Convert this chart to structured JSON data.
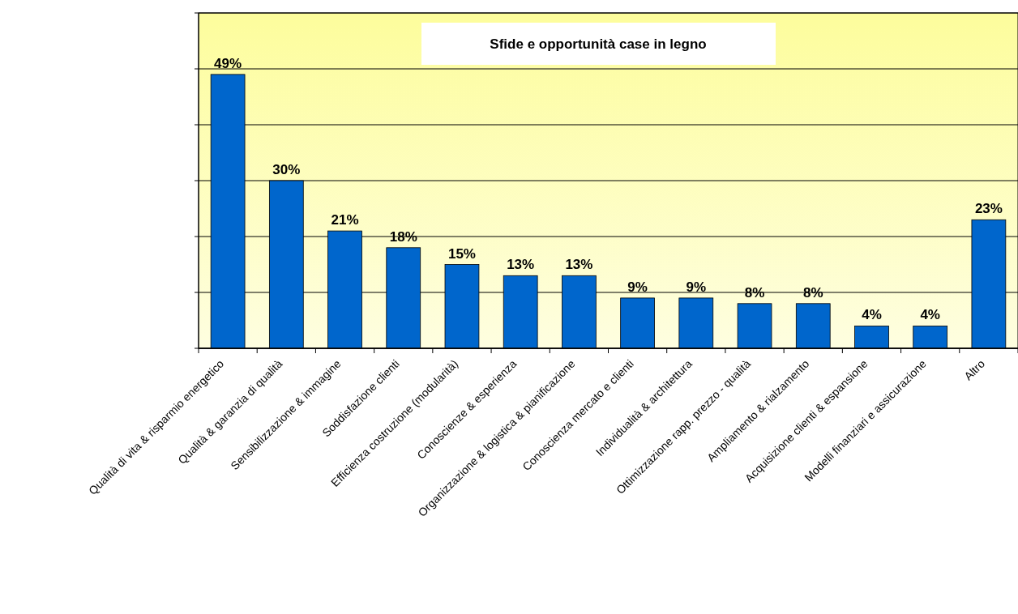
{
  "chart_data": {
    "type": "bar",
    "title": "Sfide e opportunità case in legno",
    "categories": [
      "Qualità di vita & risparmio energetico",
      "Qualità & garanzia di qualità",
      "Sensibilizzazione & immagine",
      "Soddisfazione clienti",
      "Efficienza costruzione (modularità)",
      "Conoscienze & esperienza",
      "Organizzazione & logistica & pianificazione",
      "Conoscienza mercato e clienti",
      "Individualità & architettura",
      "Ottimizzazione rapp. prezzo - qualità",
      "Ampliamento & rialzamento",
      "Acquisizione clienti & espansione",
      "Modelli finanziari e assicurazione",
      "Altro"
    ],
    "values": [
      49,
      30,
      21,
      18,
      15,
      13,
      13,
      9,
      9,
      8,
      8,
      4,
      4,
      23
    ],
    "value_labels": [
      "49%",
      "30%",
      "21%",
      "18%",
      "15%",
      "13%",
      "13%",
      "9%",
      "9%",
      "8%",
      "8%",
      "4%",
      "4%",
      "23%"
    ],
    "color": "#0066cc",
    "ylim": [
      0,
      60
    ],
    "yticks": [
      {
        "value": 0,
        "label": null
      },
      {
        "value": 10,
        "label": null
      },
      {
        "value": 20,
        "label": null
      },
      {
        "value": 30,
        "label": null
      },
      {
        "value": 40,
        "label": null
      },
      {
        "value": 50,
        "label": null
      },
      {
        "value": 60,
        "label": null
      }
    ],
    "grid": "y",
    "tick_labels": "x"
  }
}
